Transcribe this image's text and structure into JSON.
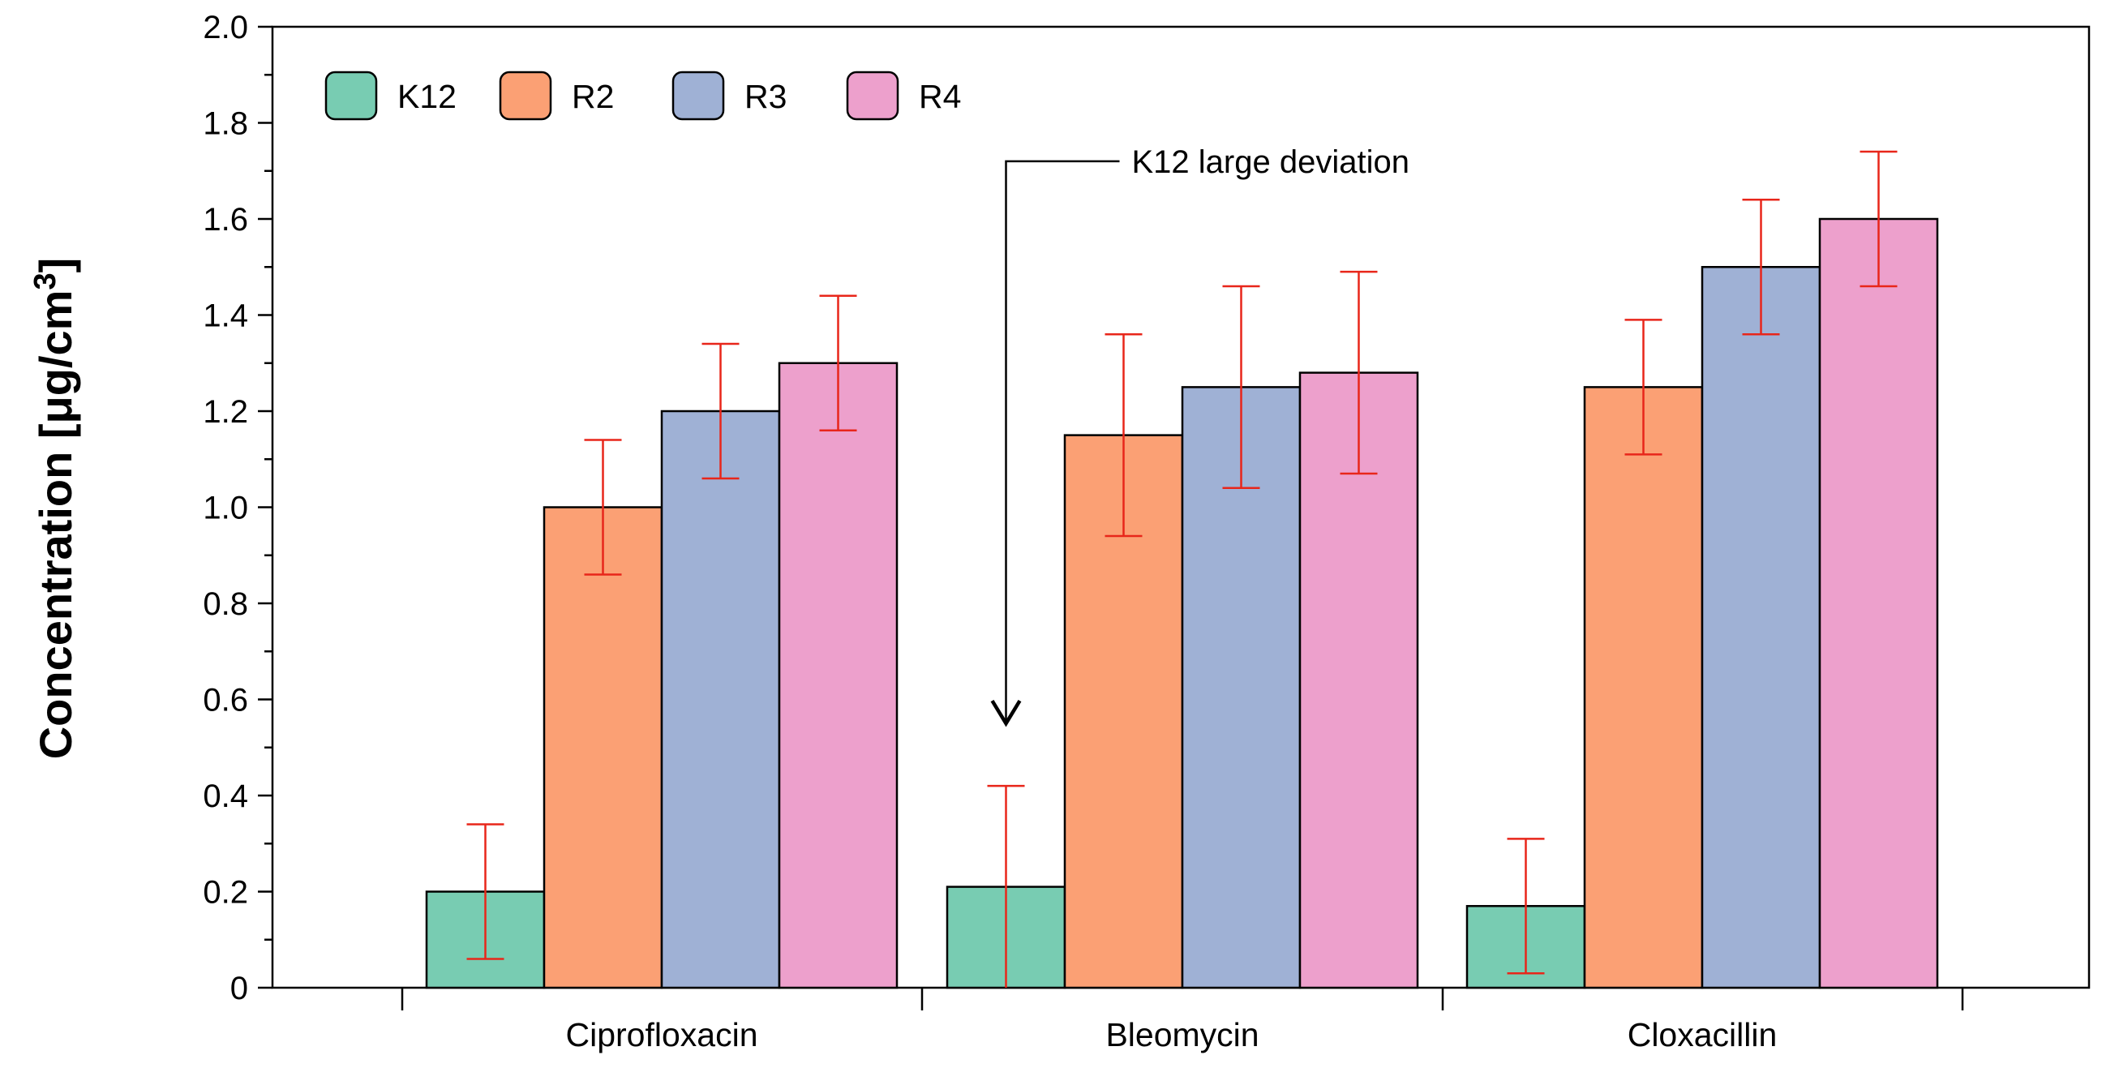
{
  "chart_data": {
    "type": "bar",
    "title": "",
    "xlabel": "",
    "ylabel": "Concentration [μg/cm",
    "ylabel_superscript": "3",
    "ylabel_close": "]",
    "ylim": [
      0,
      2.0
    ],
    "yticks": [
      0,
      0.2,
      0.4,
      0.6,
      0.8,
      1.0,
      1.2,
      1.4,
      1.6,
      1.8,
      2.0
    ],
    "ytick_labels": [
      "0",
      "0.2",
      "0.4",
      "0.6",
      "0.8",
      "1.0",
      "1.2",
      "1.4",
      "1.6",
      "1.8",
      "2.0"
    ],
    "categories": [
      "Ciprofloxacin",
      "Bleomycin",
      "Cloxacillin"
    ],
    "series": [
      {
        "name": "K12",
        "color": "#78CCB2",
        "values": [
          0.2,
          0.21,
          0.17
        ],
        "errors": [
          0.14,
          0.21,
          0.14
        ]
      },
      {
        "name": "R2",
        "color": "#FBA074",
        "values": [
          1.0,
          1.15,
          1.25
        ],
        "errors": [
          0.14,
          0.21,
          0.14
        ]
      },
      {
        "name": "R3",
        "color": "#9FB1D5",
        "values": [
          1.2,
          1.25,
          1.5
        ],
        "errors": [
          0.14,
          0.21,
          0.14
        ]
      },
      {
        "name": "R4",
        "color": "#EDA0CC",
        "values": [
          1.3,
          1.28,
          1.6
        ],
        "errors": [
          0.14,
          0.21,
          0.14
        ]
      }
    ],
    "error_bar_color": "#E8261A",
    "legend_position": "top-left",
    "grid": false,
    "annotation": {
      "text": "K12 large deviation",
      "target_category": "Bleomycin",
      "target_series": "K12",
      "arrow_tip_value": 0.55,
      "text_value": 1.72
    }
  }
}
